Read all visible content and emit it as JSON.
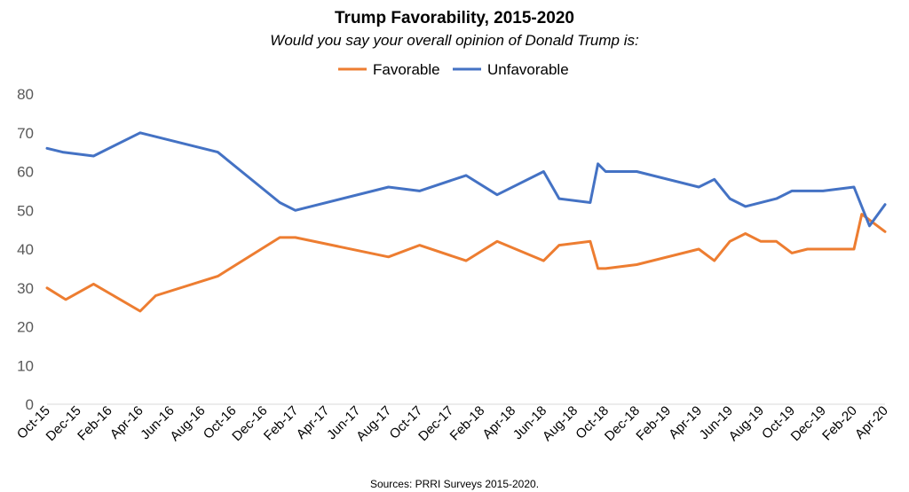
{
  "chart_data": {
    "type": "line",
    "title": "Trump Favorability, 2015-2020",
    "subtitle": "Would you say your overall opinion of Donald Trump is:",
    "source": "Sources: PRRI Surveys 2015-2020.",
    "ylim": [
      0,
      80
    ],
    "yticks": [
      "0",
      "10",
      "20",
      "30",
      "40",
      "50",
      "60",
      "70",
      "80"
    ],
    "xlim": [
      0,
      54
    ],
    "xticks": [
      {
        "m": 0,
        "label": "Oct-15"
      },
      {
        "m": 2,
        "label": "Dec-15"
      },
      {
        "m": 4,
        "label": "Feb-16"
      },
      {
        "m": 6,
        "label": "Apr-16"
      },
      {
        "m": 8,
        "label": "Jun-16"
      },
      {
        "m": 10,
        "label": "Aug-16"
      },
      {
        "m": 12,
        "label": "Oct-16"
      },
      {
        "m": 14,
        "label": "Dec-16"
      },
      {
        "m": 16,
        "label": "Feb-17"
      },
      {
        "m": 18,
        "label": "Apr-17"
      },
      {
        "m": 20,
        "label": "Jun-17"
      },
      {
        "m": 22,
        "label": "Aug-17"
      },
      {
        "m": 24,
        "label": "Oct-17"
      },
      {
        "m": 26,
        "label": "Dec-17"
      },
      {
        "m": 28,
        "label": "Feb-18"
      },
      {
        "m": 30,
        "label": "Apr-18"
      },
      {
        "m": 32,
        "label": "Jun-18"
      },
      {
        "m": 34,
        "label": "Aug-18"
      },
      {
        "m": 36,
        "label": "Oct-18"
      },
      {
        "m": 38,
        "label": "Dec-18"
      },
      {
        "m": 40,
        "label": "Feb-19"
      },
      {
        "m": 42,
        "label": "Apr-19"
      },
      {
        "m": 44,
        "label": "Jun-19"
      },
      {
        "m": 46,
        "label": "Aug-19"
      },
      {
        "m": 48,
        "label": "Oct-19"
      },
      {
        "m": 50,
        "label": "Dec-19"
      },
      {
        "m": 52,
        "label": "Feb-20"
      },
      {
        "m": 54,
        "label": "Apr-20"
      }
    ],
    "grid": false,
    "legend_position": "top-center",
    "series": [
      {
        "name": "Favorable",
        "color": "#ED7D31",
        "points": [
          [
            0,
            30
          ],
          [
            1.2,
            27
          ],
          [
            3,
            31
          ],
          [
            6,
            24
          ],
          [
            7,
            28
          ],
          [
            11,
            33
          ],
          [
            15,
            43
          ],
          [
            16,
            43
          ],
          [
            22,
            38
          ],
          [
            24,
            41
          ],
          [
            27,
            37
          ],
          [
            29,
            42
          ],
          [
            32,
            37
          ],
          [
            33,
            41
          ],
          [
            35,
            42
          ],
          [
            35.5,
            35
          ],
          [
            36,
            35
          ],
          [
            38,
            36
          ],
          [
            42,
            40
          ],
          [
            43,
            37
          ],
          [
            44,
            42
          ],
          [
            45,
            44
          ],
          [
            46,
            42
          ],
          [
            47,
            42
          ],
          [
            48,
            39
          ],
          [
            49,
            40
          ],
          [
            52,
            40
          ],
          [
            52.5,
            49
          ],
          [
            54,
            44.5
          ]
        ]
      },
      {
        "name": "Unfavorable",
        "color": "#4472C4",
        "points": [
          [
            0,
            66
          ],
          [
            1,
            65
          ],
          [
            3,
            64
          ],
          [
            6,
            70
          ],
          [
            11,
            65
          ],
          [
            15,
            52
          ],
          [
            16,
            50
          ],
          [
            22,
            56
          ],
          [
            24,
            55
          ],
          [
            27,
            59
          ],
          [
            29,
            54
          ],
          [
            32,
            60
          ],
          [
            33,
            53
          ],
          [
            35,
            52
          ],
          [
            35.5,
            62
          ],
          [
            36,
            60
          ],
          [
            38,
            60
          ],
          [
            42,
            56
          ],
          [
            43,
            58
          ],
          [
            44,
            53
          ],
          [
            45,
            51
          ],
          [
            47,
            53
          ],
          [
            48,
            55
          ],
          [
            50,
            55
          ],
          [
            52,
            56
          ],
          [
            53,
            46
          ],
          [
            54,
            51.5
          ]
        ]
      }
    ]
  }
}
